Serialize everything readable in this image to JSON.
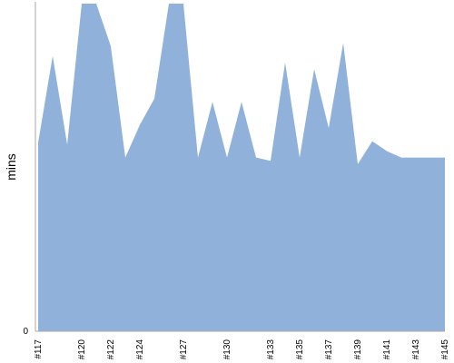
{
  "chart_data": {
    "type": "area",
    "x": [
      "#117",
      "#118",
      "#119",
      "#120",
      "#121",
      "#122",
      "#123",
      "#124",
      "#125",
      "#126",
      "#127",
      "#128",
      "#129",
      "#130",
      "#131",
      "#132",
      "#133",
      "#134",
      "#135",
      "#136",
      "#137",
      "#138",
      "#139",
      "#140",
      "#141",
      "#142",
      "#143",
      "#144",
      "#145"
    ],
    "x_tick_labels": [
      "#117",
      "#120",
      "#122",
      "#124",
      "#127",
      "#130",
      "#133",
      "#135",
      "#137",
      "#139",
      "#141",
      "#143",
      "#145"
    ],
    "values": [
      57.5,
      84,
      57,
      100,
      100,
      87,
      53,
      63,
      71,
      100,
      100,
      53,
      70,
      53,
      70,
      53,
      52,
      82,
      53,
      80,
      62,
      88,
      51,
      58,
      55,
      53,
      53,
      53,
      53
    ],
    "y_tick_labels": [
      "0"
    ],
    "ylabel": "mins",
    "ylim": [
      0,
      100
    ],
    "color": "#8fb1da",
    "axis_color": "#aaaaaa",
    "grid": false,
    "legend": "none"
  }
}
